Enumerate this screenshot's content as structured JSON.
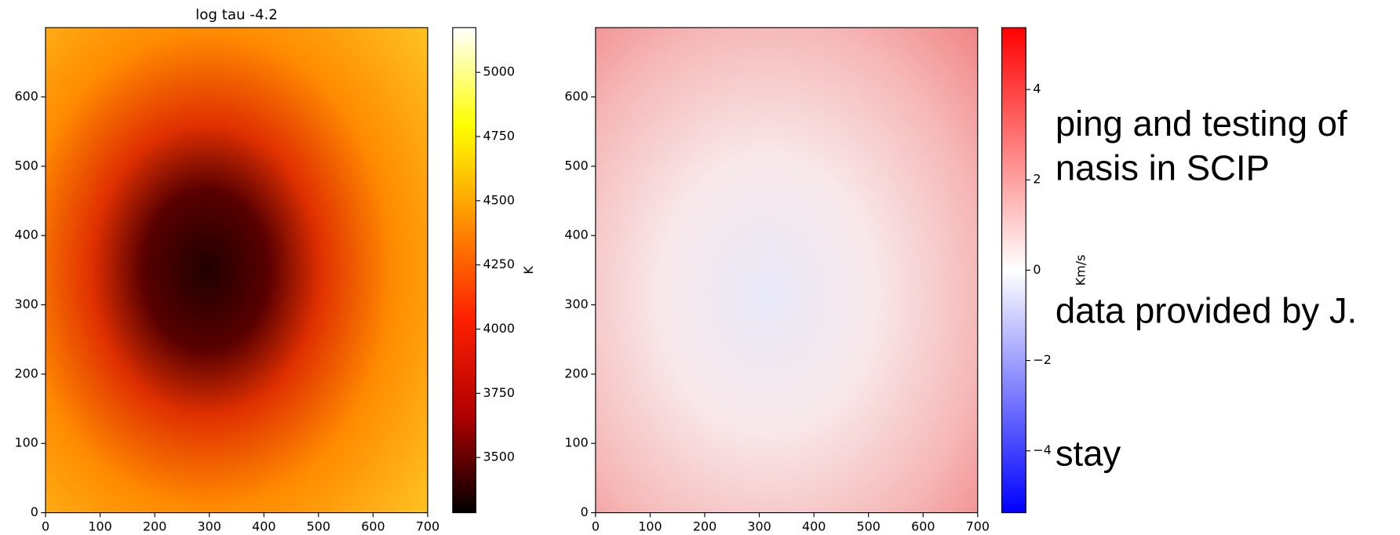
{
  "chart_data": [
    {
      "type": "heatmap",
      "title": "log tau -4.2",
      "xlim": [
        0,
        700
      ],
      "xticks": [
        0,
        100,
        200,
        300,
        400,
        500,
        600,
        700
      ],
      "ylim": [
        0,
        700
      ],
      "yticks": [
        0,
        100,
        200,
        300,
        400,
        500,
        600
      ],
      "colorbar": {
        "label": "K",
        "clim": [
          3285,
          5174
        ],
        "ticks": [
          3500,
          3750,
          4000,
          4250,
          4500,
          4750,
          5000
        ],
        "colors": [
          "#000000",
          "#b00000",
          "#ff2000",
          "#ff9000",
          "#ffff00",
          "#ffffff"
        ]
      }
    },
    {
      "type": "heatmap",
      "xlim": [
        0,
        700
      ],
      "xticks": [
        0,
        100,
        200,
        300,
        400,
        500,
        600,
        700
      ],
      "ylim": [
        0,
        700
      ],
      "yticks": [
        0,
        100,
        200,
        300,
        400,
        500,
        600
      ],
      "colorbar": {
        "label": "Km/s",
        "clim": [
          -5.37,
          5.37
        ],
        "ticks": [
          {
            "value": -4,
            "label": "−4"
          },
          {
            "value": -2,
            "label": "−2"
          },
          0,
          2,
          4
        ],
        "colors": [
          "#0000ff",
          "#ffffff",
          "#ff0000"
        ]
      }
    }
  ],
  "slide_text": [
    "ping and testing of",
    "nasis in SCIP",
    "data provided by J.",
    "stay"
  ]
}
